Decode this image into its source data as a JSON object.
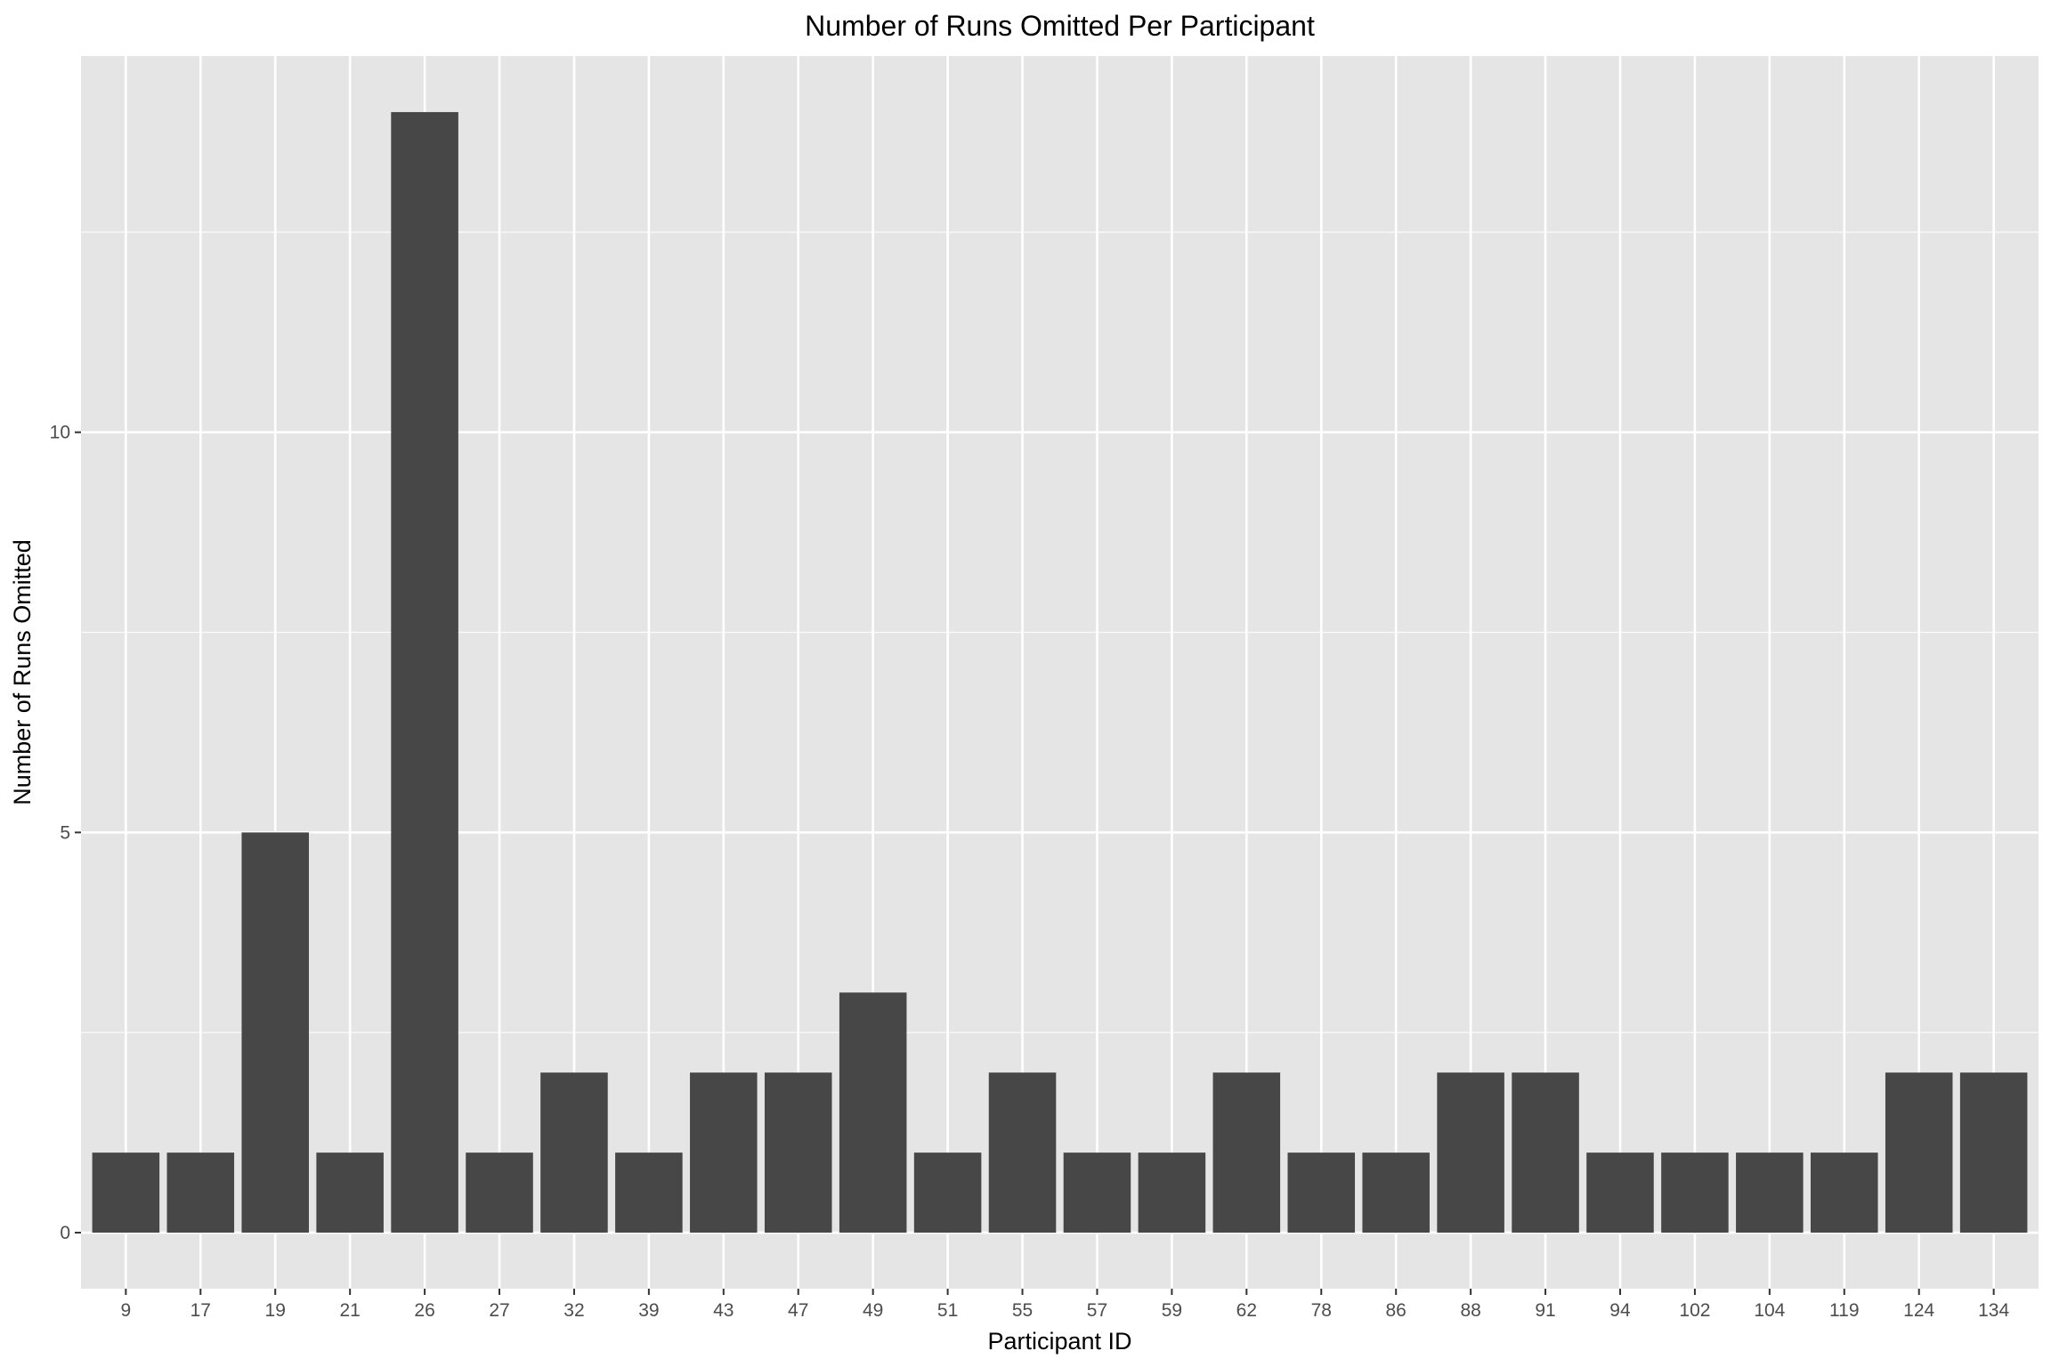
{
  "chart_data": {
    "type": "bar",
    "title": "Number of Runs Omitted Per Participant",
    "xlabel": "Participant ID",
    "ylabel": "Number of Runs Omitted",
    "categories": [
      "9",
      "17",
      "19",
      "21",
      "26",
      "27",
      "32",
      "39",
      "43",
      "47",
      "49",
      "51",
      "55",
      "57",
      "59",
      "62",
      "78",
      "86",
      "88",
      "91",
      "94",
      "102",
      "104",
      "119",
      "124",
      "134"
    ],
    "values": [
      1,
      1,
      5,
      1,
      14,
      1,
      2,
      1,
      2,
      2,
      3,
      1,
      2,
      1,
      1,
      2,
      1,
      1,
      2,
      2,
      1,
      1,
      1,
      1,
      2,
      2
    ],
    "y_ticks": [
      0,
      5,
      10
    ],
    "ylim": [
      -0.7,
      14.7
    ],
    "grid": true,
    "colors": {
      "bar": "#474747",
      "panel_background": "#e5e5e5",
      "grid": "#ffffff"
    }
  }
}
